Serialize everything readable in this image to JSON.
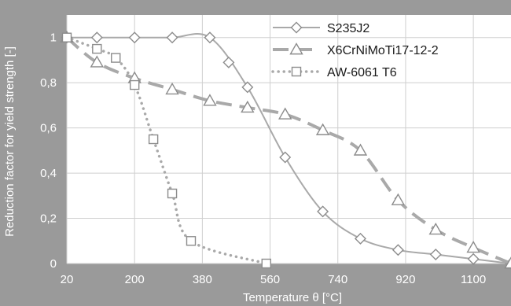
{
  "chart_data": {
    "type": "line",
    "xlabel": "Temperature θ [°C]",
    "ylabel": "Reduction factor for yield strength [-]",
    "xlim": [
      20,
      1200
    ],
    "ylim": [
      0,
      1.1
    ],
    "xticks": [
      20,
      200,
      380,
      560,
      740,
      920,
      1100
    ],
    "yticks": [
      0,
      0.2,
      0.4,
      0.6,
      0.8,
      1
    ],
    "ytick_labels": [
      "0",
      "0,2",
      "0,4",
      "0,6",
      "0,8",
      "1"
    ],
    "grid": true,
    "legend_position": "top-right",
    "colors": {
      "background": "#9a9a9a",
      "plot_area": "#ffffff",
      "grid": "#cfcfcf",
      "legend_line": "#a9a9a9"
    },
    "series": [
      {
        "name": "S235J2",
        "marker": "diamond",
        "line_style": "solid",
        "x": [
          20,
          100,
          200,
          300,
          400,
          500,
          600,
          700,
          800,
          900,
          1000,
          1100,
          1200
        ],
        "y": [
          1,
          1,
          1,
          1,
          1,
          0.78,
          0.47,
          0.23,
          0.11,
          0.06,
          0.04,
          0.02,
          0
        ]
      },
      {
        "name": "X6CrNiMoTi17-12-2",
        "marker": "triangle",
        "line_style": "dashed",
        "x": [
          20,
          100,
          200,
          300,
          400,
          500,
          600,
          700,
          800,
          900,
          1000,
          1100,
          1200
        ],
        "y": [
          1,
          0.89,
          0.82,
          0.77,
          0.72,
          0.69,
          0.66,
          0.59,
          0.5,
          0.28,
          0.15,
          0.07,
          0
        ]
      },
      {
        "name": "AW-6061 T6",
        "marker": "square",
        "line_style": "dotted",
        "x": [
          20,
          100,
          150,
          200,
          250,
          300,
          350,
          550
        ],
        "y": [
          1,
          0.95,
          0.91,
          0.79,
          0.55,
          0.31,
          0.1,
          0
        ]
      }
    ],
    "extra_markers": [
      {
        "series": "S235J2",
        "x": 450,
        "y": 0.89
      }
    ]
  }
}
